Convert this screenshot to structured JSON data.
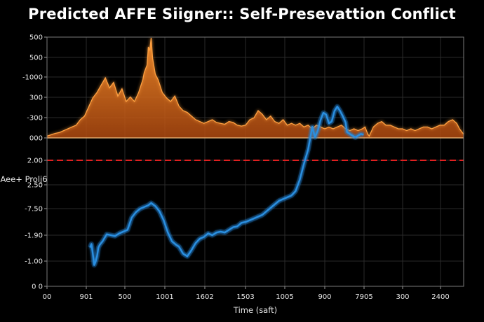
{
  "chart_data": {
    "type": "area",
    "title": "Predicted AFFE Siigner:: Self-Presevattion Conflict",
    "xlabel": "Time (saft)",
    "ylabel": "Aee+ Prolj6",
    "x_tick_labels": [
      "00",
      "901",
      "500",
      "1001",
      "1602",
      "1503",
      "1005",
      "900",
      "7905",
      "300",
      "2400"
    ],
    "y_tick_labels": [
      "500",
      "500",
      "-1000",
      "300",
      "-300",
      "000",
      "2.00",
      "2.50",
      "-7.50",
      "-1.90",
      "-1.00",
      "0 0"
    ],
    "grid": true,
    "threshold": {
      "value": 2.0,
      "color": "#e02020",
      "style": "dashed"
    },
    "colors": {
      "orange": "#e07020",
      "blue": "#2b8fe0",
      "threshold": "#e02020"
    },
    "series": [
      {
        "kind": "area",
        "color": "#e07020",
        "x": [
          0,
          4,
          8,
          12,
          18,
          24,
          30,
          36,
          42,
          48,
          54,
          60,
          66,
          72,
          78,
          84,
          90,
          96,
          102,
          108,
          114,
          120,
          126,
          132,
          138,
          140,
          144,
          146,
          148,
          150,
          152,
          156,
          160,
          166,
          172,
          178,
          184,
          190,
          196,
          202,
          208,
          214,
          220,
          226,
          232,
          238,
          244,
          250,
          256,
          262,
          268,
          274,
          280,
          286,
          292,
          298,
          304,
          310,
          316,
          322,
          328,
          334,
          340,
          346,
          352,
          358,
          364,
          370,
          376,
          382,
          388,
          394,
          400,
          406,
          412,
          418,
          424,
          430,
          436,
          442,
          448,
          454,
          458,
          460,
          462,
          464,
          470,
          476,
          482,
          488,
          494,
          500,
          506,
          512,
          518,
          524,
          530,
          536,
          542,
          548,
          554,
          560,
          566,
          572,
          578,
          584,
          590,
          594,
          598,
          600
        ],
        "values": [
          2,
          3,
          4,
          5,
          6,
          8,
          10,
          12,
          14,
          20,
          24,
          34,
          44,
          50,
          58,
          66,
          55,
          61,
          46,
          54,
          40,
          45,
          40,
          50,
          64,
          72,
          80,
          100,
          96,
          110,
          88,
          70,
          64,
          50,
          44,
          40,
          46,
          35,
          30,
          28,
          24,
          20,
          18,
          16,
          18,
          20,
          17,
          16,
          15,
          18,
          17,
          14,
          13,
          14,
          20,
          22,
          30,
          26,
          20,
          24,
          18,
          16,
          20,
          14,
          16,
          14,
          16,
          12,
          14,
          10,
          14,
          12,
          10,
          12,
          10,
          12,
          14,
          10,
          8,
          10,
          8,
          10,
          12,
          8,
          4,
          2,
          12,
          16,
          18,
          14,
          14,
          12,
          10,
          10,
          8,
          10,
          8,
          10,
          12,
          12,
          10,
          12,
          14,
          14,
          18,
          20,
          16,
          10,
          6,
          4
        ]
      },
      {
        "kind": "line",
        "color": "#2b8fe0",
        "x": [
          62,
          64,
          66,
          68,
          70,
          72,
          74,
          76,
          80,
          86,
          92,
          98,
          104,
          110,
          116,
          122,
          128,
          134,
          140,
          146,
          150,
          156,
          162,
          168,
          174,
          180,
          186,
          190,
          196,
          202,
          208,
          214,
          220,
          226,
          232,
          238,
          244,
          250,
          256,
          262,
          268,
          274,
          280,
          286,
          292,
          298,
          304,
          310,
          316,
          322,
          328,
          334,
          340,
          346,
          352,
          358,
          364,
          370,
          376,
          382,
          386,
          390,
          394,
          398,
          402,
          406,
          410,
          414,
          418,
          422,
          426,
          430,
          432,
          436,
          440,
          444,
          448,
          452,
          456
        ],
        "values": [
          -7.9,
          -7.5,
          -8.6,
          -9.9,
          -9.5,
          -8.9,
          -7.9,
          -7.6,
          -7.2,
          -6.4,
          -6.5,
          -6.6,
          -6.3,
          -6.1,
          -5.9,
          -4.5,
          -3.9,
          -3.5,
          -3.3,
          -3.1,
          -2.85,
          -3.2,
          -3.8,
          -4.8,
          -6.2,
          -7.2,
          -7.6,
          -7.8,
          -8.6,
          -8.9,
          -8.2,
          -7.4,
          -6.9,
          -6.7,
          -6.3,
          -6.5,
          -6.2,
          -6.1,
          -6.2,
          -5.9,
          -5.6,
          -5.5,
          -5.1,
          -5.0,
          -4.8,
          -4.6,
          -4.4,
          -4.2,
          -3.8,
          -3.4,
          -3.0,
          -2.6,
          -2.4,
          -2.2,
          -2.0,
          -1.5,
          -0.2,
          1.6,
          3.2,
          5.8,
          4.6,
          5.4,
          6.6,
          7.4,
          7.2,
          6.2,
          6.4,
          7.6,
          8.1,
          7.6,
          7.0,
          6.3,
          5.2,
          5.0,
          4.8,
          4.6,
          4.8,
          5.0,
          4.9
        ]
      }
    ]
  }
}
